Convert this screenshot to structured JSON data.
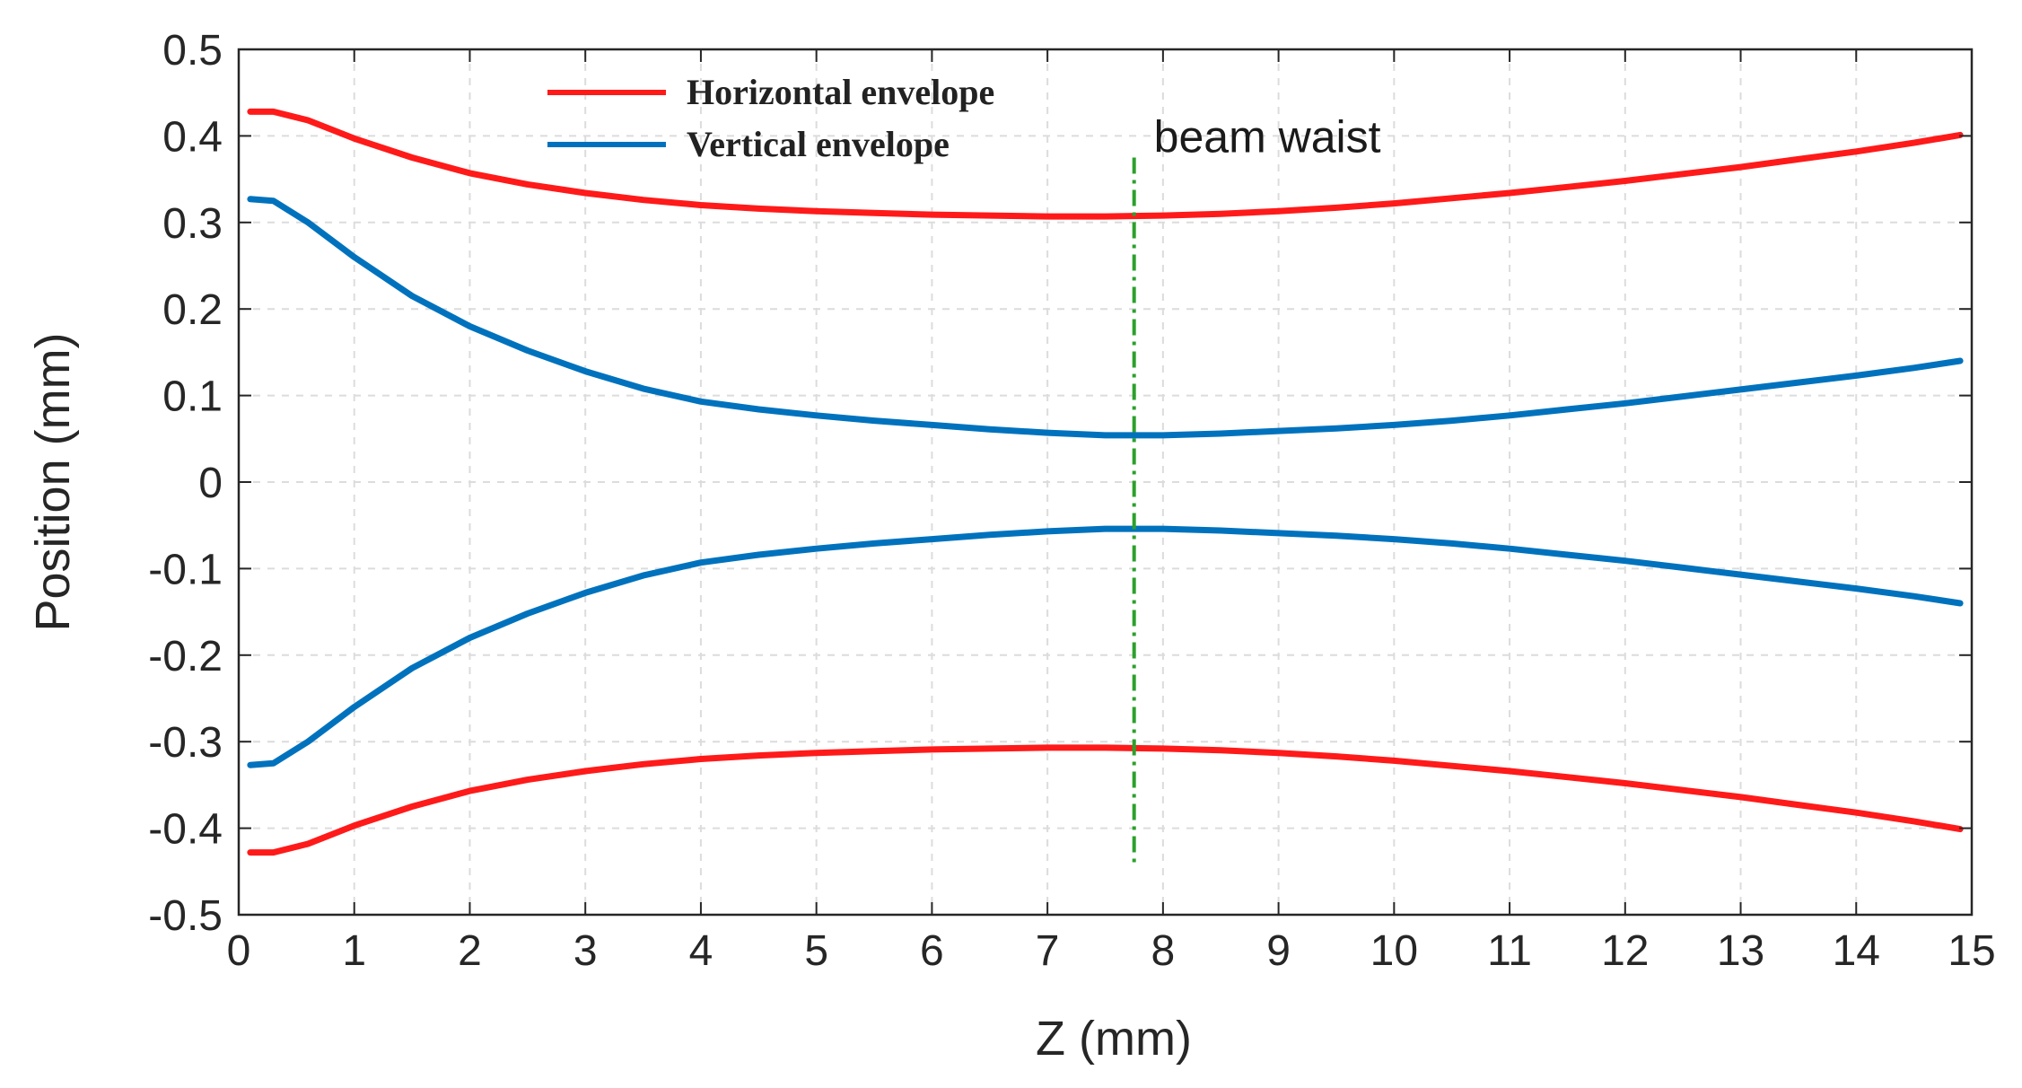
{
  "chart_data": {
    "type": "line",
    "title": "",
    "xlabel": "Z (mm)",
    "ylabel": "Position (mm)",
    "xlim": [
      0,
      15
    ],
    "ylim": [
      -0.5,
      0.5
    ],
    "xticks": [
      0,
      1,
      2,
      3,
      4,
      5,
      6,
      7,
      8,
      9,
      10,
      11,
      12,
      13,
      14,
      15
    ],
    "xtick_labels": [
      "0",
      "1",
      "2",
      "3",
      "4",
      "5",
      "6",
      "7",
      "8",
      "9",
      "10",
      "11",
      "12",
      "13",
      "14",
      "15"
    ],
    "yticks": [
      0.5,
      0.4,
      0.3,
      0.2,
      0.1,
      0,
      -0.1,
      -0.2,
      -0.3,
      -0.4,
      -0.5
    ],
    "ytick_labels": [
      "0.5",
      "0.4",
      "0.3",
      "0.2",
      "0.1",
      "0",
      "-0.1",
      "-0.2",
      "-0.3",
      "-0.4",
      "-0.5"
    ],
    "grid": true,
    "legend_position": "top-left",
    "series": [
      {
        "name": "Horizontal envelope",
        "color": "#ff1a1a",
        "x": [
          0.1,
          0.3,
          0.6,
          1,
          1.5,
          2,
          2.5,
          3,
          3.5,
          4,
          4.5,
          5,
          5.5,
          6,
          6.5,
          7,
          7.5,
          8,
          8.5,
          9,
          9.5,
          10,
          10.5,
          11,
          11.5,
          12,
          12.5,
          13,
          13.5,
          14,
          14.5,
          14.9
        ],
        "y": [
          0.428,
          0.428,
          0.418,
          0.397,
          0.375,
          0.357,
          0.344,
          0.334,
          0.326,
          0.32,
          0.316,
          0.313,
          0.311,
          0.309,
          0.308,
          0.307,
          0.307,
          0.308,
          0.31,
          0.313,
          0.317,
          0.322,
          0.328,
          0.334,
          0.341,
          0.348,
          0.356,
          0.364,
          0.373,
          0.382,
          0.392,
          0.401
        ]
      },
      {
        "name": "Horizontal envelope (lower)",
        "color": "#ff1a1a",
        "x": [
          0.1,
          0.3,
          0.6,
          1,
          1.5,
          2,
          2.5,
          3,
          3.5,
          4,
          4.5,
          5,
          5.5,
          6,
          6.5,
          7,
          7.5,
          8,
          8.5,
          9,
          9.5,
          10,
          10.5,
          11,
          11.5,
          12,
          12.5,
          13,
          13.5,
          14,
          14.5,
          14.9
        ],
        "y": [
          -0.428,
          -0.428,
          -0.418,
          -0.397,
          -0.375,
          -0.357,
          -0.344,
          -0.334,
          -0.326,
          -0.32,
          -0.316,
          -0.313,
          -0.311,
          -0.309,
          -0.308,
          -0.307,
          -0.307,
          -0.308,
          -0.31,
          -0.313,
          -0.317,
          -0.322,
          -0.328,
          -0.334,
          -0.341,
          -0.348,
          -0.356,
          -0.364,
          -0.373,
          -0.382,
          -0.392,
          -0.401
        ]
      },
      {
        "name": "Vertical envelope",
        "color": "#0072bd",
        "x": [
          0.1,
          0.3,
          0.6,
          1,
          1.5,
          2,
          2.5,
          3,
          3.5,
          4,
          4.5,
          5,
          5.5,
          6,
          6.5,
          7,
          7.5,
          8,
          8.5,
          9,
          9.5,
          10,
          10.5,
          11,
          11.5,
          12,
          12.5,
          13,
          13.5,
          14,
          14.5,
          14.9
        ],
        "y": [
          0.327,
          0.325,
          0.3,
          0.26,
          0.215,
          0.18,
          0.152,
          0.128,
          0.108,
          0.093,
          0.084,
          0.077,
          0.071,
          0.066,
          0.061,
          0.057,
          0.054,
          0.054,
          0.056,
          0.059,
          0.062,
          0.066,
          0.071,
          0.077,
          0.084,
          0.091,
          0.099,
          0.107,
          0.115,
          0.123,
          0.132,
          0.14
        ]
      },
      {
        "name": "Vertical envelope (lower)",
        "color": "#0072bd",
        "x": [
          0.1,
          0.3,
          0.6,
          1,
          1.5,
          2,
          2.5,
          3,
          3.5,
          4,
          4.5,
          5,
          5.5,
          6,
          6.5,
          7,
          7.5,
          8,
          8.5,
          9,
          9.5,
          10,
          10.5,
          11,
          11.5,
          12,
          12.5,
          13,
          13.5,
          14,
          14.5,
          14.9
        ],
        "y": [
          -0.327,
          -0.325,
          -0.3,
          -0.26,
          -0.215,
          -0.18,
          -0.152,
          -0.128,
          -0.108,
          -0.093,
          -0.084,
          -0.077,
          -0.071,
          -0.066,
          -0.061,
          -0.057,
          -0.054,
          -0.054,
          -0.056,
          -0.059,
          -0.062,
          -0.066,
          -0.071,
          -0.077,
          -0.084,
          -0.091,
          -0.099,
          -0.107,
          -0.115,
          -0.123,
          -0.132,
          -0.14
        ]
      }
    ],
    "legend": [
      {
        "label": "Horizontal envelope",
        "color": "#ff1a1a"
      },
      {
        "label": "Vertical envelope",
        "color": "#0072bd"
      }
    ],
    "annotations": [
      {
        "type": "vline",
        "label": "beam waist",
        "x": 7.75,
        "y_range": [
          -0.44,
          0.375
        ],
        "color": "#2ca02c",
        "style": "dash-dot"
      }
    ]
  }
}
